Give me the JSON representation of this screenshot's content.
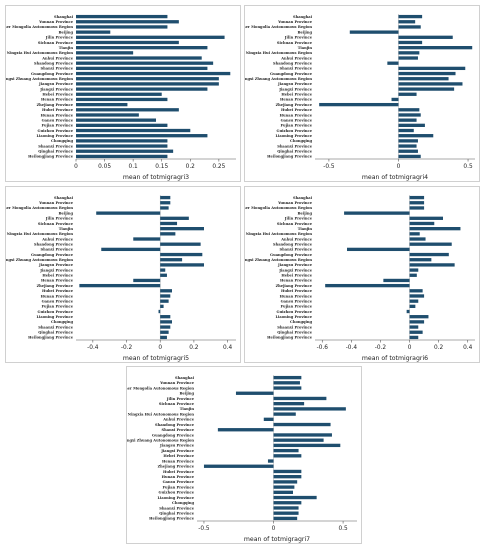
{
  "bar_color": "#1f4e6e",
  "chart_data": [
    {
      "type": "bar",
      "orientation": "horizontal",
      "xlabel": "mean of totmigragri3",
      "xlim": [
        0,
        0.28
      ],
      "xticks": [
        0,
        0.05,
        0.1,
        0.15,
        0.2,
        0.25
      ],
      "xtick_labels": [
        "0",
        "0.05",
        "0.1",
        "0.15",
        "0.2",
        "0.25"
      ],
      "categories": [
        "Shanghai",
        "Yunnan Province",
        "Inner Mongolia Autonomous Region",
        "Beijing",
        "Jilin Province",
        "Sichuan Province",
        "Tianjin",
        "Ningxia Hui Autonomous Region",
        "Anhui Province",
        "Shandong Province",
        "Shanxi Province",
        "Guangdong Province",
        "Guangxi Zhuang Autonomous Region",
        "Jiangsu Province",
        "Jiangxi Province",
        "Hebei Province",
        "Henan Province",
        "Zhejiang Province",
        "Hubei Province",
        "Hunan Province",
        "Gansu Province",
        "Fujian Province",
        "Guizhou Province",
        "Liaoning Province",
        "Chongqing",
        "Shaanxi Province",
        "Qinghai Province",
        "Heilongjiang Province"
      ],
      "values": [
        0.16,
        0.18,
        0.16,
        0.06,
        0.26,
        0.18,
        0.23,
        0.1,
        0.22,
        0.24,
        0.23,
        0.27,
        0.25,
        0.25,
        0.23,
        0.15,
        0.16,
        0.09,
        0.18,
        0.11,
        0.14,
        0.16,
        0.2,
        0.23,
        0.16,
        0.16,
        0.17,
        0.16
      ]
    },
    {
      "type": "bar",
      "orientation": "horizontal",
      "xlabel": "mean of totmigragri4",
      "xlim": [
        -0.6,
        0.55
      ],
      "xticks": [
        -0.5,
        0,
        0.5
      ],
      "xtick_labels": [
        "-0.5",
        "0",
        "0.5"
      ],
      "categories": [
        "Shanghai",
        "Yunnan Province",
        "Inner Mongolia Autonomous Region",
        "Beijing",
        "Jilin Province",
        "Sichuan Province",
        "Tianjin",
        "Ningxia Hui Autonomous Region",
        "Anhui Province",
        "Shandong Province",
        "Shanxi Province",
        "Guangdong Province",
        "Guangxi Zhuang Autonomous Region",
        "Jiangsu Province",
        "Jiangxi Province",
        "Hebei Province",
        "Henan Province",
        "Zhejiang Province",
        "Hubei Province",
        "Hunan Province",
        "Gansu Province",
        "Fujian Province",
        "Guizhou Province",
        "Liaoning Province",
        "Chongqing",
        "Shaanxi Province",
        "Qinghai Province",
        "Heilongjiang Province"
      ],
      "values": [
        0.17,
        0.12,
        0.16,
        -0.35,
        0.39,
        0.17,
        0.53,
        0.15,
        0.14,
        -0.08,
        0.48,
        0.41,
        0.36,
        0.46,
        0.4,
        0.13,
        -0.05,
        -0.57,
        0.15,
        0.16,
        0.13,
        0.19,
        0.11,
        0.25,
        0.14,
        0.13,
        0.14,
        0.16
      ]
    },
    {
      "type": "bar",
      "orientation": "horizontal",
      "xlabel": "mean of totmigragri5",
      "xlim": [
        -0.5,
        0.45
      ],
      "xticks": [
        -0.4,
        -0.2,
        0,
        0.2,
        0.4
      ],
      "xtick_labels": [
        "-0.4",
        "-0.2",
        "0",
        "0.2",
        "0.4"
      ],
      "categories": [
        "Shanghai",
        "Yunnan Province",
        "Inner Mongolia Autonomous Region",
        "Beijing",
        "Jilin Province",
        "Sichuan Province",
        "Tianjin",
        "Ningxia Hui Autonomous Region",
        "Anhui Province",
        "Shandong Province",
        "Shanxi Province",
        "Guangdong Province",
        "Guangxi Zhuang Autonomous Region",
        "Jiangsu Province",
        "Jiangxi Province",
        "Hebei Province",
        "Henan Province",
        "Zhejiang Province",
        "Hubei Province",
        "Hunan Province",
        "Gansu Province",
        "Fujian Province",
        "Guizhou Province",
        "Liaoning Province",
        "Chongqing",
        "Shaanxi Province",
        "Qinghai Province",
        "Heilongjiang Province"
      ],
      "values": [
        0.06,
        0.06,
        0.05,
        -0.38,
        0.17,
        0.1,
        0.26,
        0.09,
        -0.16,
        0.24,
        -0.35,
        0.25,
        0.13,
        0.26,
        0.03,
        0.04,
        -0.16,
        -0.48,
        0.07,
        0.06,
        0.05,
        0.02,
        -0.01,
        0.06,
        0.07,
        0.06,
        0.05,
        0.04
      ]
    },
    {
      "type": "bar",
      "orientation": "horizontal",
      "xlabel": "mean of totmigragri6",
      "xlim": [
        -0.65,
        0.45
      ],
      "xticks": [
        -0.6,
        -0.4,
        -0.2,
        0,
        0.2,
        0.4
      ],
      "xtick_labels": [
        "-0.6",
        "-0.4",
        "-0.2",
        "0",
        "0.2",
        "0.4"
      ],
      "categories": [
        "Shanghai",
        "Yunnan Province",
        "Inner Mongolia Autonomous Region",
        "Beijing",
        "Jilin Province",
        "Sichuan Province",
        "Tianjin",
        "Ningxia Hui Autonomous Region",
        "Anhui Province",
        "Shandong Province",
        "Shanxi Province",
        "Guangdong Province",
        "Guangxi Zhuang Autonomous Region",
        "Jiangsu Province",
        "Jiangxi Province",
        "Hebei Province",
        "Henan Province",
        "Zhejiang Province",
        "Hubei Province",
        "Hunan Province",
        "Gansu Province",
        "Fujian Province",
        "Guizhou Province",
        "Liaoning Province",
        "Chongqing",
        "Shaanxi Province",
        "Qinghai Province",
        "Heilongjiang Province"
      ],
      "values": [
        0.1,
        0.1,
        0.1,
        -0.45,
        0.23,
        0.17,
        0.35,
        0.07,
        0.11,
        0.29,
        -0.43,
        0.27,
        0.15,
        0.31,
        0.06,
        0.05,
        -0.18,
        -0.58,
        0.09,
        0.1,
        0.06,
        0.04,
        -0.02,
        0.13,
        0.1,
        0.06,
        0.09,
        0.06
      ]
    },
    {
      "type": "bar",
      "orientation": "horizontal",
      "xlabel": "mean of totmigragri7",
      "xlim": [
        -0.55,
        0.6
      ],
      "xticks": [
        -0.5,
        0,
        0.5
      ],
      "xtick_labels": [
        "-0.5",
        "0",
        "0.5"
      ],
      "categories": [
        "Shanghai",
        "Yunnan Province",
        "Inner Mongolia Autonomous Region",
        "Beijing",
        "Jilin Province",
        "Sichuan Province",
        "Tianjin",
        "Ningxia Hui Autonomous Region",
        "Anhui Province",
        "Shandong Province",
        "Shanxi Province",
        "Guangdong Province",
        "Guangxi Zhuang Autonomous Region",
        "Jiangsu Province",
        "Jiangxi Province",
        "Hebei Province",
        "Henan Province",
        "Zhejiang Province",
        "Hubei Province",
        "Hunan Province",
        "Gansu Province",
        "Fujian Province",
        "Guizhou Province",
        "Liaoning Province",
        "Chongqing",
        "Shaanxi Province",
        "Qinghai Province",
        "Heilongjiang Province"
      ],
      "values": [
        0.2,
        0.19,
        0.2,
        -0.27,
        0.38,
        0.22,
        0.52,
        0.16,
        -0.07,
        0.41,
        -0.4,
        0.42,
        0.36,
        0.48,
        0.18,
        0.2,
        -0.04,
        -0.5,
        0.2,
        0.2,
        0.17,
        0.15,
        0.14,
        0.31,
        0.2,
        0.18,
        0.18,
        0.17
      ]
    }
  ]
}
